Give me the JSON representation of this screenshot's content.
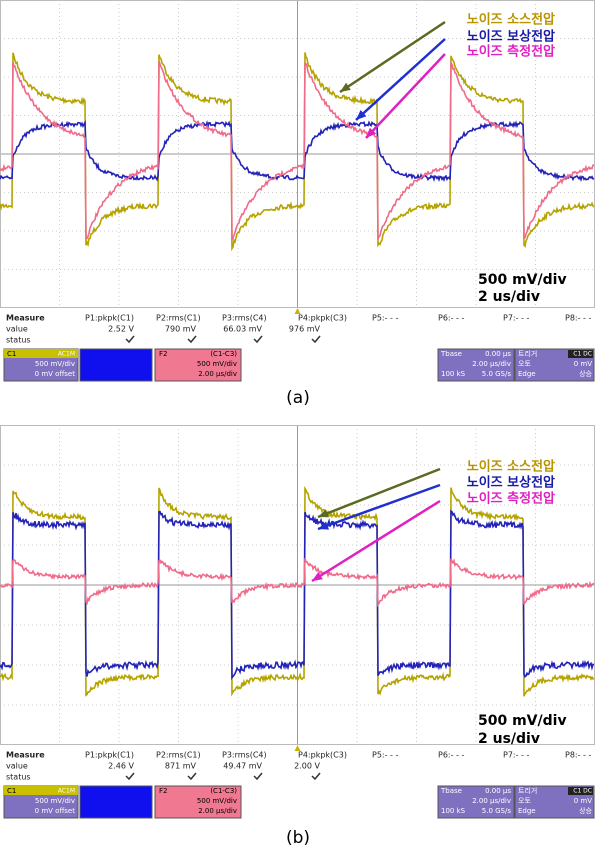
{
  "panels": [
    {
      "label": "(a)",
      "legend": [
        "노이즈 소스전압",
        "노이즈 보상전압",
        "노이즈 측정전압"
      ],
      "scale": [
        "500 mV/div",
        "2 us/div"
      ],
      "measure": {
        "headers": [
          "Measure",
          "P1:pkpk(C1)",
          "P2:rms(C1)",
          "P3:rms(C4)",
          "P4:pkpk(C3)",
          "P5:- - -",
          "P6:- - -",
          "P7:- - -",
          "P8:- - -"
        ],
        "value_label": "value",
        "values": [
          "2.52 V",
          "790 mV",
          "66.03 mV",
          "976 mV"
        ],
        "status_label": "status"
      },
      "channels": {
        "c1": [
          "C1",
          "AC1M",
          "500 mV/div",
          "0 mV offset"
        ],
        "f2": [
          "F2",
          "(C1-C3)",
          "500 mV/div",
          "2.00 µs/div"
        ],
        "tbase": [
          "Tbase",
          "0.00 µs",
          "2.00 µs/div",
          "100 kS",
          "5.0 GS/s"
        ],
        "trigger": [
          "트리거",
          "C1 DC",
          "오토",
          "0 mV",
          "Edge",
          "상승"
        ]
      }
    },
    {
      "label": "(b)",
      "legend": [
        "노이즈 소스전압",
        "노이즈 보상전압",
        "노이즈 측정전압"
      ],
      "scale": [
        "500 mV/div",
        "2 us/div"
      ],
      "measure": {
        "headers": [
          "Measure",
          "P1:pkpk(C1)",
          "P2:rms(C1)",
          "P3:rms(C4)",
          "P4:pkpk(C3)",
          "P5:- - -",
          "P6:- - -",
          "P7:- - -",
          "P8:- - -"
        ],
        "value_label": "value",
        "values": [
          "2.46 V",
          "871 mV",
          "49.47 mV",
          "2.00 V"
        ],
        "status_label": "status"
      },
      "channels": {
        "c1": [
          "C1",
          "AC1M",
          "500 mV/div",
          "0 mV offset"
        ],
        "f2": [
          "F2",
          "(C1-C3)",
          "500 mV/div",
          "2.00 µs/div"
        ],
        "tbase": [
          "Tbase",
          "0.00 µs",
          "2.00 µs/div",
          "100 kS",
          "5.0 GS/s"
        ],
        "trigger": [
          "트리거",
          "C1 DC",
          "오토",
          "0 mV",
          "Edge",
          "상승"
        ]
      }
    }
  ]
}
